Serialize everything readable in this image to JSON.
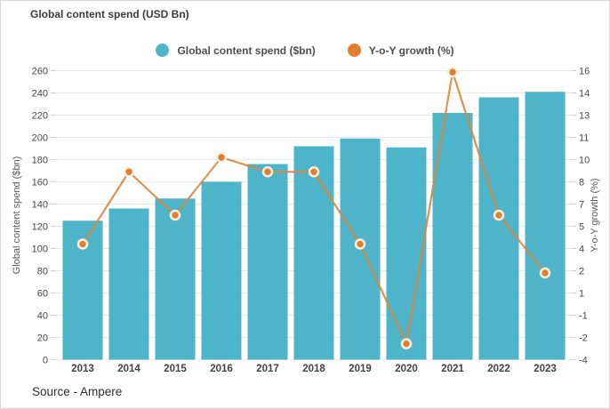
{
  "title": "Global content spend (USD Bn)",
  "source": "Source - Ampere",
  "legend": [
    {
      "label": "Global content spend ($bn)",
      "color": "#4db4c9"
    },
    {
      "label": "Y-o-Y growth (%)",
      "color": "#e0802f"
    }
  ],
  "chart_data": {
    "type": "bar",
    "categories": [
      "2013",
      "2014",
      "2015",
      "2016",
      "2017",
      "2018",
      "2019",
      "2020",
      "2021",
      "2022",
      "2023"
    ],
    "series": [
      {
        "name": "Global content spend ($bn)",
        "type": "bar",
        "axis": "left",
        "color": "#4db4c9",
        "values": [
          125,
          136,
          145,
          160,
          176,
          192,
          199,
          191,
          222,
          236,
          241
        ]
      },
      {
        "name": "Y-o-Y growth (%)",
        "type": "line",
        "axis": "right",
        "color": "#e0802f",
        "values": [
          4.0,
          9.0,
          6.0,
          10.0,
          9.0,
          9.0,
          4.0,
          -2.9,
          15.9,
          6.0,
          2.0
        ]
      }
    ],
    "left_axis": {
      "label": "Global content spend ($bn)",
      "min": 0,
      "max": 260,
      "tick_step": 20,
      "ticks": [
        0,
        20,
        40,
        60,
        80,
        100,
        120,
        140,
        160,
        180,
        200,
        220,
        240,
        260
      ]
    },
    "right_axis": {
      "label": "Y-o-Y growth (%)",
      "min": -4,
      "max": 16,
      "tick_labels_top_to_bottom": [
        "16",
        "14",
        "13",
        "11",
        "10",
        "8",
        "7",
        "5",
        "4",
        "2",
        "1",
        "-1",
        "-2",
        "-4"
      ]
    },
    "grid": "horizontal",
    "legend_position": "top-center",
    "colors": {
      "bar": "#4db4c9",
      "line": "#d9863c",
      "marker_fill": "#e0802f",
      "marker_ring": "#f8f0e2",
      "gridline": "#e7e7e7",
      "tick": "#cfcfcf",
      "tick_text": "#474747",
      "xlabel_text": "#424242"
    }
  }
}
